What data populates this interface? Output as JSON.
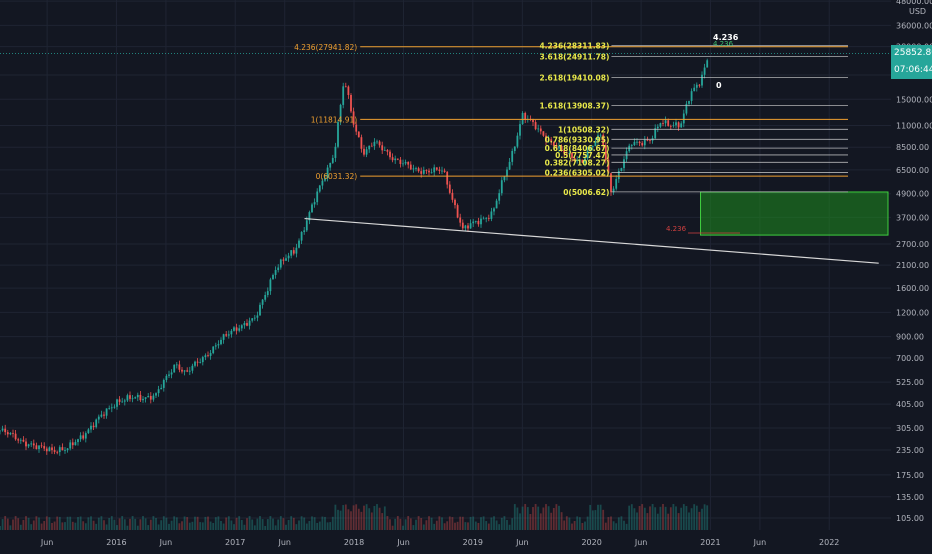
{
  "chart_data": {
    "type": "candlestick",
    "instrument_currency": "USD",
    "y_scale": "log",
    "ylim": [
      100,
      48000
    ],
    "x_range": [
      "2015-01",
      "2022-06"
    ],
    "grid": true,
    "y_ticks": [
      "48000.00",
      "36000.00",
      "28000.00",
      "20000.00",
      "15000.00",
      "11000.00",
      "8500.00",
      "6500.00",
      "4900.00",
      "3700.00",
      "2700.00",
      "2100.00",
      "1600.00",
      "1200.00",
      "900.00",
      "700.00",
      "525.00",
      "405.00",
      "305.00",
      "235.00",
      "175.00",
      "135.00",
      "105.00"
    ],
    "x_ticks": [
      "Jun",
      "2016",
      "Jun",
      "2017",
      "Jun",
      "2018",
      "Jun",
      "2019",
      "Jun",
      "2020",
      "Jun",
      "2021",
      "Jun",
      "2022"
    ],
    "last_price": "25852.80",
    "countdown": "07:06:44",
    "price_path": [
      {
        "date": "2015-01",
        "price": 300
      },
      {
        "date": "2015-03",
        "price": 270
      },
      {
        "date": "2015-05",
        "price": 240
      },
      {
        "date": "2015-08",
        "price": 235
      },
      {
        "date": "2015-11",
        "price": 330
      },
      {
        "date": "2016-01",
        "price": 420
      },
      {
        "date": "2016-05",
        "price": 450
      },
      {
        "date": "2016-07",
        "price": 660
      },
      {
        "date": "2016-08",
        "price": 580
      },
      {
        "date": "2016-12",
        "price": 900
      },
      {
        "date": "2017-01",
        "price": 1000
      },
      {
        "date": "2017-03",
        "price": 1100
      },
      {
        "date": "2017-05",
        "price": 2000
      },
      {
        "date": "2017-07",
        "price": 2500
      },
      {
        "date": "2017-09",
        "price": 4500
      },
      {
        "date": "2017-11",
        "price": 8000
      },
      {
        "date": "2017-12",
        "price": 19000
      },
      {
        "date": "2018-01",
        "price": 11000
      },
      {
        "date": "2018-02",
        "price": 8000
      },
      {
        "date": "2018-03",
        "price": 9000
      },
      {
        "date": "2018-05",
        "price": 7500
      },
      {
        "date": "2018-07",
        "price": 6500
      },
      {
        "date": "2018-10",
        "price": 6400
      },
      {
        "date": "2018-12",
        "price": 3200
      },
      {
        "date": "2019-03",
        "price": 3900
      },
      {
        "date": "2019-05",
        "price": 8000
      },
      {
        "date": "2019-06",
        "price": 12500
      },
      {
        "date": "2019-08",
        "price": 10000
      },
      {
        "date": "2019-10",
        "price": 8000
      },
      {
        "date": "2019-12",
        "price": 7200
      },
      {
        "date": "2020-02",
        "price": 10000
      },
      {
        "date": "2020-03",
        "price": 5000
      },
      {
        "date": "2020-05",
        "price": 9000
      },
      {
        "date": "2020-07",
        "price": 9200
      },
      {
        "date": "2020-08",
        "price": 11500
      },
      {
        "date": "2020-10",
        "price": 11000
      },
      {
        "date": "2020-11",
        "price": 16000
      },
      {
        "date": "2020-12",
        "price": 19000
      },
      {
        "date": "2020-12-28",
        "price": 25852.8
      }
    ],
    "fib_extension_2017": {
      "color": "#f0a030",
      "levels": [
        {
          "label": "4.236(27941.82)",
          "price": 27941.82
        },
        {
          "label": "1(11814.91)",
          "price": 11814.91
        },
        {
          "label": "0(6031.32)",
          "price": 6031.32
        }
      ]
    },
    "fib_retracement_2020": {
      "color": "#e8e84a",
      "levels": [
        {
          "label": "4.236(28311.83)",
          "price": 28311.83
        },
        {
          "label": "3.618(24911.78)",
          "price": 24911.78
        },
        {
          "label": "2.618(19410.08)",
          "price": 19410.08
        },
        {
          "label": "1.618(13908.37)",
          "price": 13908.37
        },
        {
          "label": "1(10508.32)",
          "price": 10508.32
        },
        {
          "label": "0.786(9330.95)",
          "price": 9330.95
        },
        {
          "label": "0.618(8406.67)",
          "price": 8406.67
        },
        {
          "label": "0.5(7757.47)",
          "price": 7757.47
        },
        {
          "label": "0.382(7108.27)",
          "price": 7108.27
        },
        {
          "label": "0.236(6305.02)",
          "price": 6305.02
        },
        {
          "label": "0(5006.62)",
          "price": 5006.62
        }
      ]
    },
    "annotations": [
      {
        "label": "4.236",
        "color": "#ffffff"
      },
      {
        "label": "4.236",
        "color": "#3fbf6f"
      },
      {
        "label": "0",
        "color": "#ffffff"
      },
      {
        "label": "4.236",
        "color": "#d04040"
      }
    ],
    "support_trendline": {
      "start": {
        "date": "2017-08",
        "price": 3650
      },
      "end": {
        "date": "2022-06",
        "price": 2150
      },
      "color": "#d8d8d8"
    },
    "target_box": {
      "from_date": "2020-12-01",
      "to_date": "2022-06",
      "price_low": 3000,
      "price_high": 5000,
      "color": "#1e8c1e"
    }
  }
}
